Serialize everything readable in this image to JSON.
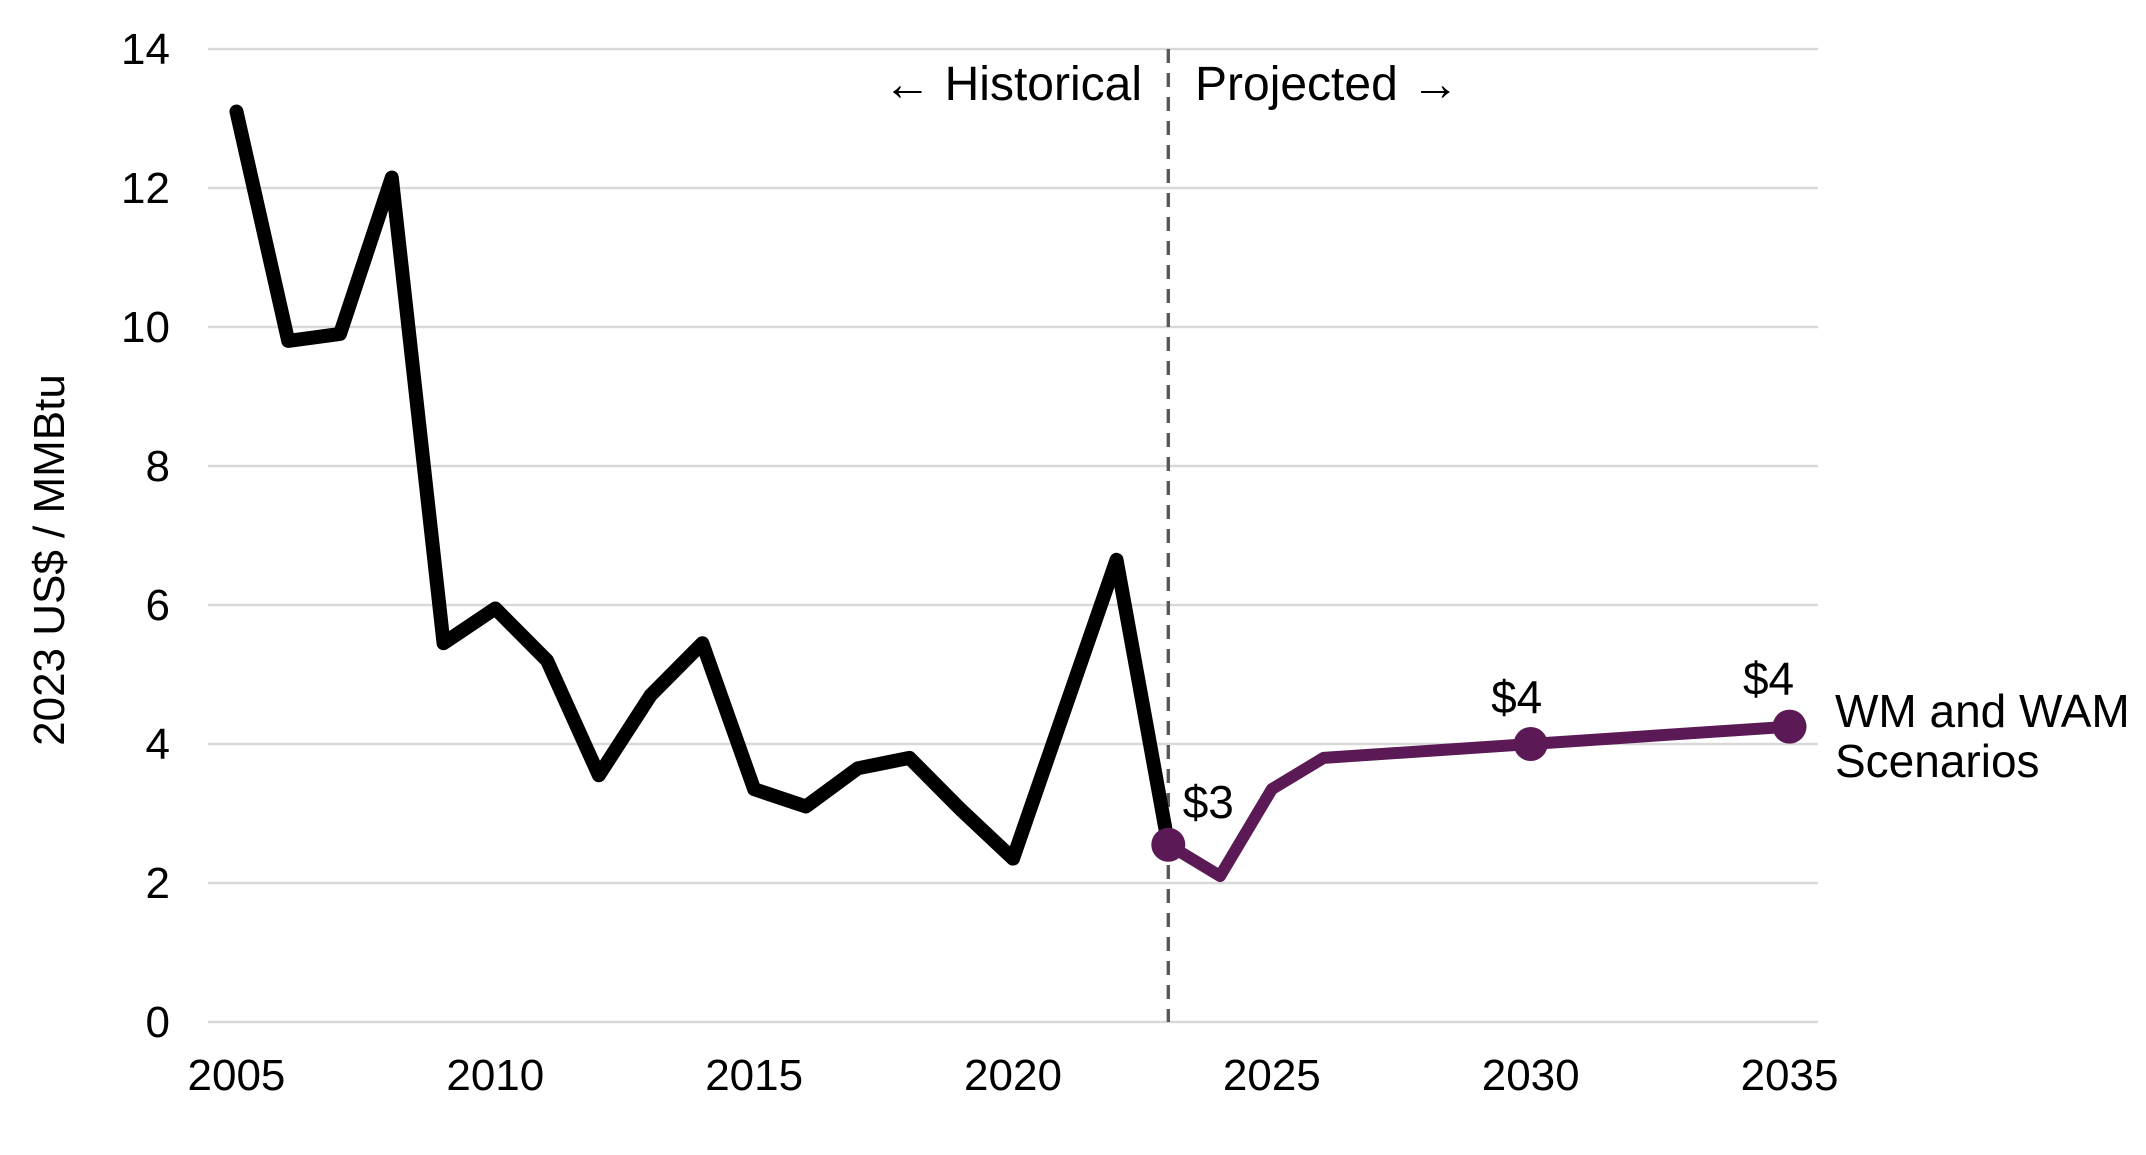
{
  "chart_data": {
    "type": "line",
    "title": "",
    "xlabel": "",
    "ylabel": "2023 US$ / MMBtu",
    "ylim": [
      0,
      14
    ],
    "yticks": [
      0,
      2,
      4,
      6,
      8,
      10,
      12,
      14
    ],
    "xlim": [
      2004.45,
      2035.55
    ],
    "xticks": [
      2005,
      2010,
      2015,
      2020,
      2025,
      2030,
      2035
    ],
    "grid": "horizontal",
    "legend_position": "none",
    "gridline_color": "#D9D9D9",
    "text_color": "#000000",
    "divider": {
      "x": 2023,
      "style": "dashed",
      "color": "#595959",
      "label_left": "← Historical",
      "label_right": "Projected →"
    },
    "series": [
      {
        "name": "Historical",
        "color": "#000000",
        "line_width": 14,
        "x": [
          2005,
          2006,
          2007,
          2008,
          2009,
          2010,
          2011,
          2012,
          2013,
          2014,
          2015,
          2016,
          2017,
          2018,
          2019,
          2020,
          2021,
          2022,
          2023
        ],
        "values": [
          13.1,
          9.8,
          9.9,
          12.15,
          5.45,
          5.95,
          5.2,
          3.55,
          4.7,
          5.45,
          3.35,
          3.1,
          3.65,
          3.8,
          3.05,
          2.35,
          4.5,
          6.65,
          2.55
        ]
      },
      {
        "name": "WM and WAM Scenarios",
        "color": "#5B1A55",
        "line_width": 12,
        "x": [
          2023,
          2024,
          2025,
          2026,
          2030,
          2035
        ],
        "values": [
          2.55,
          2.1,
          3.35,
          3.8,
          4.0,
          4.25
        ],
        "markers": [
          {
            "x": 2023,
            "value": 2.55,
            "label": "$3"
          },
          {
            "x": 2030,
            "value": 4.0,
            "label": "$4"
          },
          {
            "x": 2035,
            "value": 4.25,
            "label": "$4"
          }
        ]
      }
    ]
  },
  "annotations": {
    "historical_label": "← Historical",
    "projected_label": "Projected →",
    "series_label_line1": "WM and WAM",
    "series_label_line2": "Scenarios",
    "y_axis_title": "2023 US$ / MMBtu"
  }
}
